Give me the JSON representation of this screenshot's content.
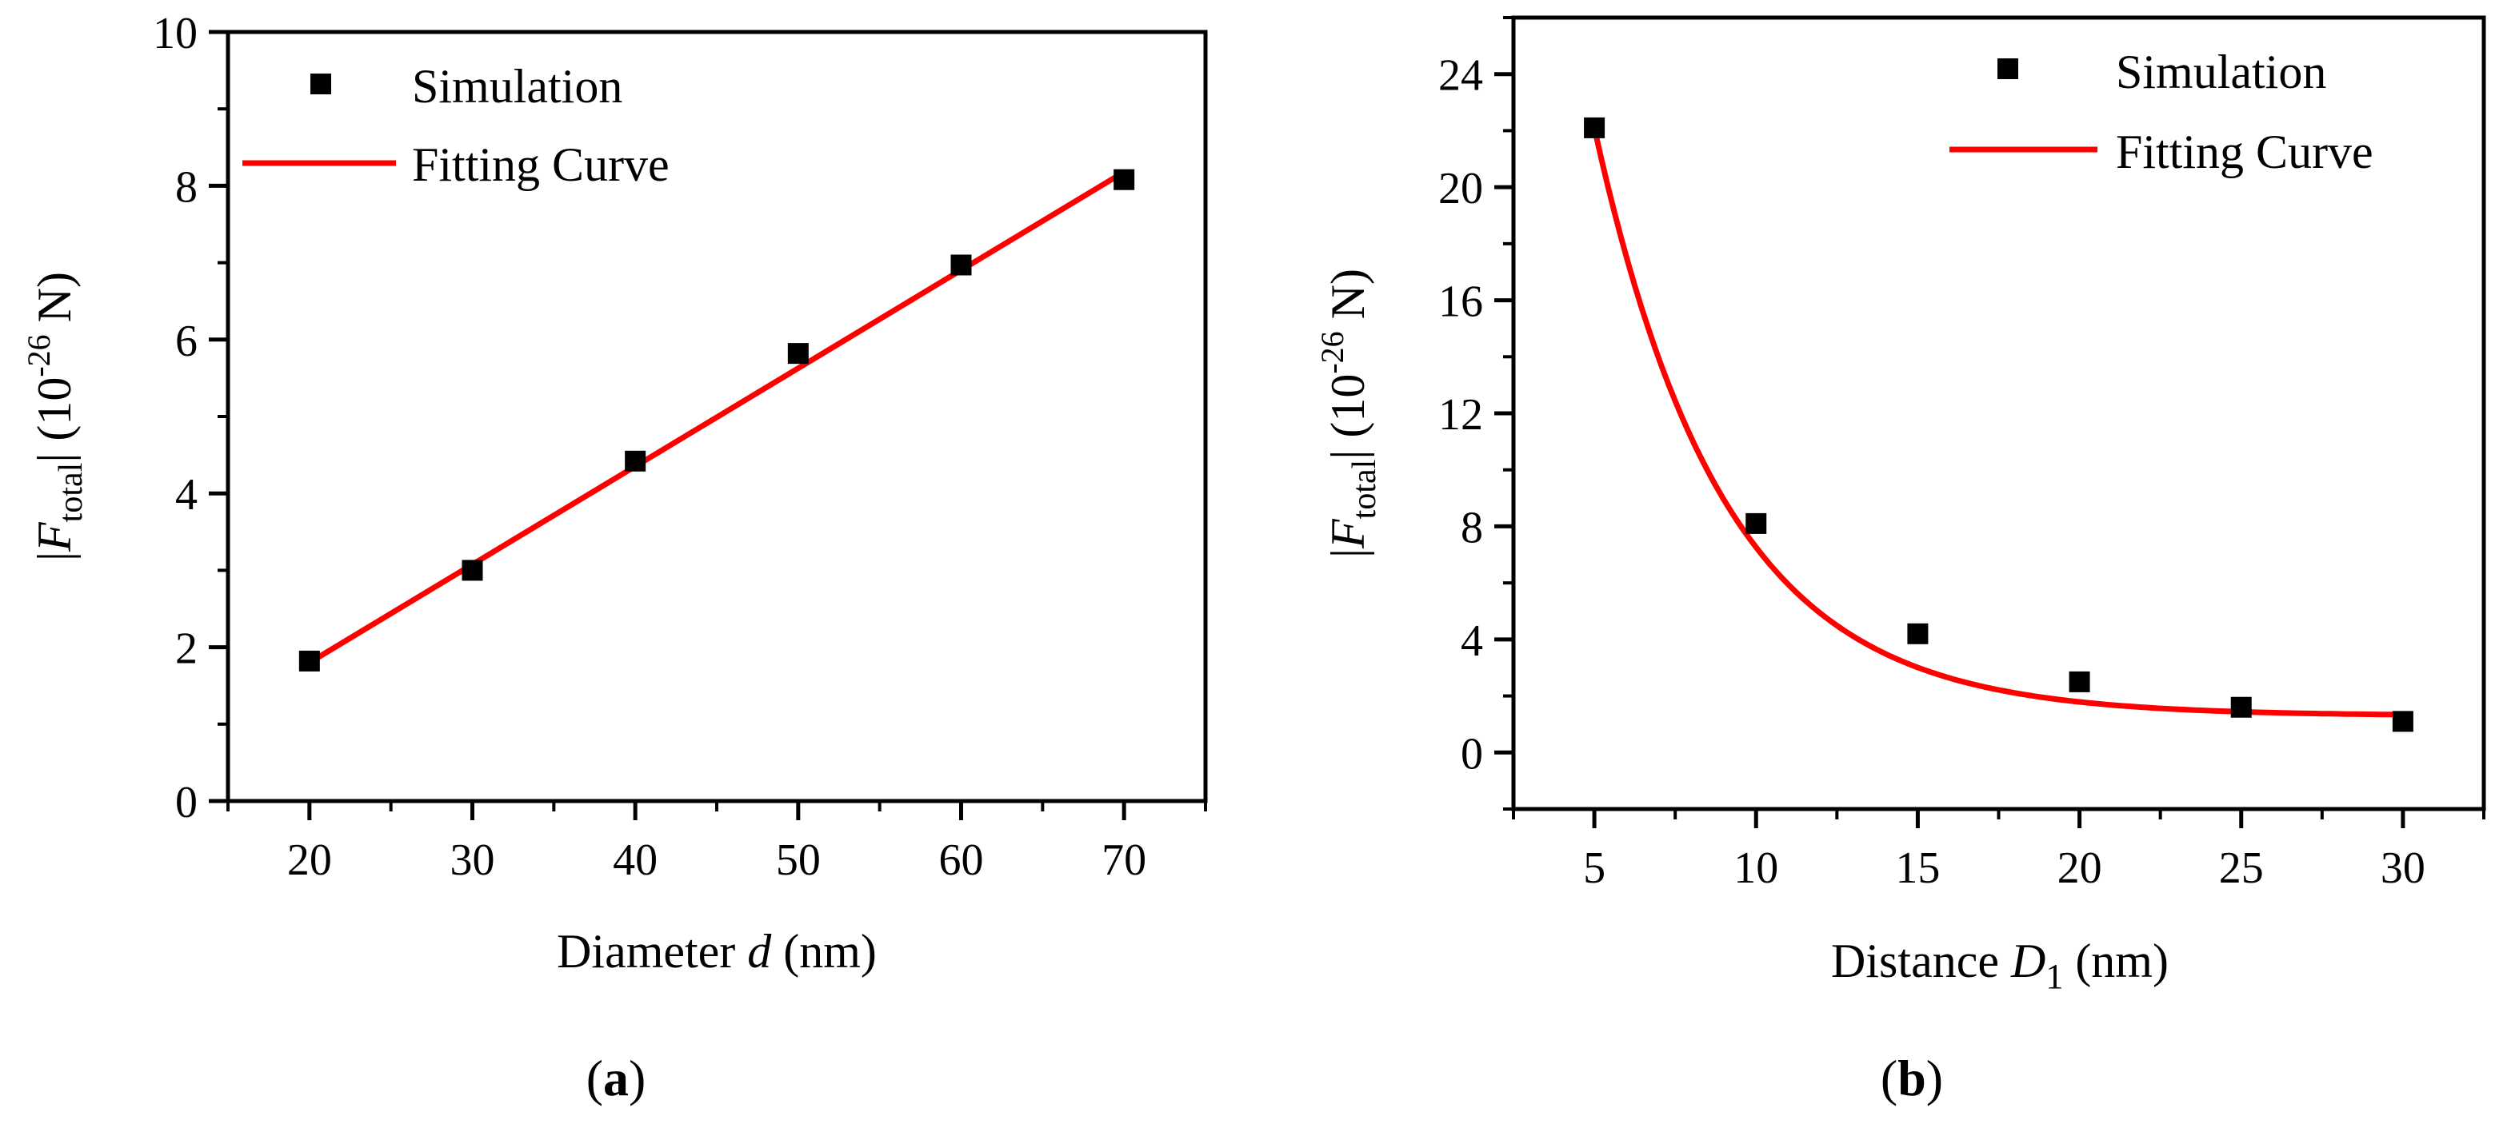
{
  "colors": {
    "marker": "#000000",
    "fit": "#ff0000",
    "axis": "#000000",
    "background": "#ffffff"
  },
  "chart_data": [
    {
      "type": "scatter",
      "panel_label": {
        "open": "(",
        "letter": "a",
        "close": ")"
      },
      "xlabel": {
        "prefix": "Diameter ",
        "var": "d",
        "suffix": " (nm)"
      },
      "ylabel": {
        "bar_open": "|",
        "var": "F",
        "sub": "total",
        "bar_close": "|",
        "unit_open": " (10",
        "exp": "-26",
        "unit_close": " N)"
      },
      "xlim": [
        15,
        75
      ],
      "ylim": [
        0,
        10
      ],
      "xticks": [
        20,
        30,
        40,
        50,
        60,
        70
      ],
      "xtick_labels": [
        "20",
        "30",
        "40",
        "50",
        "60",
        "70"
      ],
      "yticks": [
        0,
        2,
        4,
        6,
        8,
        10
      ],
      "ytick_labels": [
        "0",
        "2",
        "4",
        "6",
        "8",
        "10"
      ],
      "legend": {
        "position": "top-left",
        "simulation": "Simulation",
        "fit": "Fitting Curve"
      },
      "series": [
        {
          "name": "Simulation",
          "kind": "markers",
          "x": [
            20,
            30,
            40,
            50,
            60,
            70
          ],
          "y": [
            1.82,
            3.0,
            4.42,
            5.82,
            6.97,
            8.08
          ]
        },
        {
          "name": "Fitting Curve",
          "kind": "linear",
          "x": [
            20,
            70
          ],
          "y": [
            1.8,
            8.18
          ]
        }
      ]
    },
    {
      "type": "scatter",
      "panel_label": {
        "open": "(",
        "letter": "b",
        "close": ")"
      },
      "xlabel": {
        "prefix": "Distance ",
        "var": "D",
        "var_sub": "1",
        "suffix": " (nm)"
      },
      "ylabel": {
        "bar_open": "|",
        "var": "F",
        "sub": "total",
        "bar_close": "|",
        "unit_open": " (10",
        "exp": "-26",
        "unit_close": " N)"
      },
      "xlim": [
        2.5,
        32.5
      ],
      "ylim": [
        -2,
        26
      ],
      "xticks": [
        5,
        10,
        15,
        20,
        25,
        30
      ],
      "xtick_labels": [
        "5",
        "10",
        "15",
        "20",
        "25",
        "30"
      ],
      "yticks": [
        0,
        4,
        8,
        12,
        16,
        20,
        24
      ],
      "ytick_labels": [
        "0",
        "4",
        "8",
        "12",
        "16",
        "20",
        "24"
      ],
      "legend": {
        "position": "top-right",
        "simulation": "Simulation",
        "fit": "Fitting Curve"
      },
      "series": [
        {
          "name": "Simulation",
          "kind": "markers",
          "x": [
            5,
            10,
            15,
            20,
            25,
            30
          ],
          "y": [
            22.1,
            8.1,
            4.2,
            2.5,
            1.6,
            1.1
          ]
        },
        {
          "name": "Fitting Curve",
          "kind": "exp_decay",
          "x": [
            5,
            30
          ],
          "params": {
            "y0": 1.3,
            "A": 20.8,
            "x0": 5,
            "tau": 4.0
          }
        }
      ]
    }
  ]
}
